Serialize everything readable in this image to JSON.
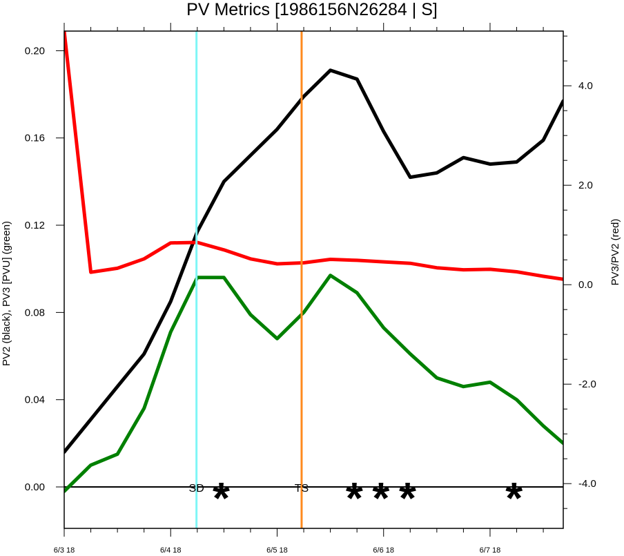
{
  "chart_data": {
    "type": "line",
    "title": "PV Metrics [1986156N26284 | S]",
    "left_axis": {
      "label": "PV2 (black), PV3 [PVU] (green)",
      "range": [
        -0.019,
        0.209
      ],
      "ticks": [
        "0.00",
        "0.04",
        "0.08",
        "0.12",
        "0.16",
        "0.20"
      ],
      "tick_values": [
        0.0,
        0.04,
        0.08,
        0.12,
        0.16,
        0.2
      ]
    },
    "right_axis": {
      "label": "PV3/PV2 (red)",
      "range": [
        -4.9,
        5.1
      ],
      "ticks": [
        "-4.0",
        "-2.0",
        "0.0",
        "2.0",
        "4.0"
      ],
      "tick_values": [
        -4.0,
        -2.0,
        0.0,
        2.0,
        4.0
      ]
    },
    "x_axis": {
      "range": [
        0,
        18.75
      ],
      "tick_labels": [
        "6/3 18",
        "6/4 18",
        "6/5 18",
        "6/6 18",
        "6/7 18"
      ],
      "tick_values": [
        0,
        4,
        8,
        12,
        16
      ]
    },
    "x": [
      0,
      1,
      2,
      3,
      4,
      5,
      6,
      7,
      8,
      9,
      10,
      11,
      12,
      13,
      14,
      15,
      16,
      17,
      18,
      19
    ],
    "series": [
      {
        "axis": "left",
        "color": "#000000",
        "values": [
          0.016,
          0.031,
          0.046,
          0.061,
          0.085,
          0.117,
          0.14,
          0.152,
          0.164,
          0.179,
          0.191,
          0.187,
          0.163,
          0.142,
          0.144,
          0.151,
          0.148,
          0.149,
          0.159,
          0.177
        ]
      },
      {
        "axis": "left",
        "color": "#008000",
        "values": [
          -0.002,
          0.01,
          0.015,
          0.036,
          0.071,
          0.096,
          0.096,
          0.079,
          0.068,
          0.08,
          0.097,
          0.089,
          0.073,
          0.061,
          0.05,
          0.046,
          0.048,
          0.04,
          0.028,
          0.02
        ]
      },
      {
        "axis": "right",
        "color": "#ff0000",
        "values": [
          5.1,
          0.25,
          0.33,
          0.52,
          0.84,
          0.85,
          0.7,
          0.52,
          0.42,
          0.44,
          0.51,
          0.49,
          0.46,
          0.43,
          0.34,
          0.3,
          0.31,
          0.26,
          0.17,
          0.11
        ]
      }
    ],
    "zero_line": 0.0,
    "events": [
      {
        "label": "SD",
        "x": 4.97,
        "color": "#7ff6f6"
      },
      {
        "label": "TS",
        "x": 8.92,
        "color": "#ff8a1e"
      }
    ],
    "stars": [
      {
        "x": 5.9,
        "label": "*"
      },
      {
        "x": 10.9,
        "label": "*"
      },
      {
        "x": 11.9,
        "label": "*"
      },
      {
        "x": 12.9,
        "label": "*"
      },
      {
        "x": 16.9,
        "label": "*"
      }
    ]
  }
}
